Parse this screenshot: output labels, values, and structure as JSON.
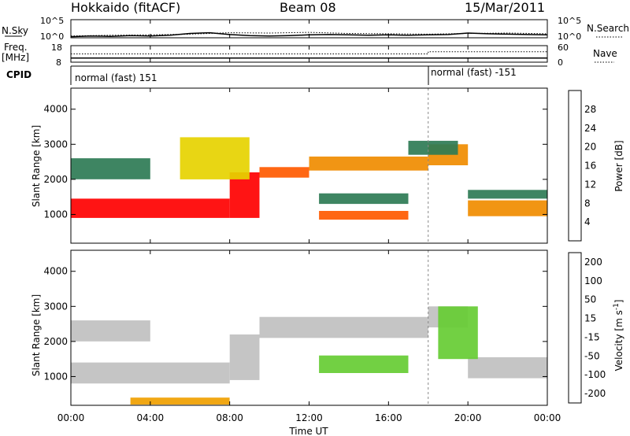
{
  "header": {
    "site": "Hokkaido (fitACF)",
    "beam": "Beam 08",
    "date": "15/Mar/2011"
  },
  "labels": {
    "nsky": "N.Sky",
    "nsearch": "N.Search",
    "freq": "Freq.",
    "freq_unit": "[MHz]",
    "nave": "Nave",
    "cpid": "CPID"
  },
  "colors": {
    "gray": "#c0c0c0",
    "axis": "#000000"
  },
  "chart_data": [
    {
      "type": "line",
      "panel": "noise",
      "ylabel_left": "N.Sky",
      "ylabel_right": "N.Search",
      "left_ticks": [
        "10^5",
        "10^0"
      ],
      "right_ticks": [
        "10^5",
        "10^0"
      ],
      "ylim_log10": [
        0,
        5
      ],
      "series": [
        {
          "name": "N.Sky",
          "style": "solid",
          "x_hours": [
            0,
            1,
            2,
            3,
            4,
            5,
            6,
            7,
            8,
            9,
            10,
            11,
            12,
            13,
            14,
            15,
            16,
            17,
            18,
            19,
            20,
            21,
            22,
            23,
            24
          ],
          "log10": [
            0.3,
            0.5,
            0.4,
            0.6,
            0.5,
            0.7,
            1.2,
            1.4,
            0.9,
            0.6,
            0.5,
            0.6,
            0.8,
            0.9,
            0.8,
            0.7,
            0.8,
            0.7,
            0.8,
            0.9,
            1.3,
            1.1,
            1.0,
            0.9,
            0.8
          ]
        },
        {
          "name": "N.Search",
          "style": "dotted",
          "x_hours": [
            0,
            2,
            4,
            6,
            8,
            10,
            12,
            14,
            16,
            18,
            20,
            22,
            24
          ],
          "log10": [
            0.5,
            0.7,
            0.8,
            1.0,
            1.4,
            1.3,
            1.5,
            1.2,
            1.1,
            1.0,
            1.2,
            1.3,
            1.1
          ]
        }
      ]
    },
    {
      "type": "line",
      "panel": "freq",
      "ylabel_left": "Freq. [MHz]",
      "ylabel_right": "Nave",
      "left_ticks": [
        18,
        8
      ],
      "right_ticks": [
        60,
        0
      ],
      "series": [
        {
          "name": "Freq.",
          "style": "solid",
          "x_hours": [
            0,
            24
          ],
          "mhz": [
            10.5,
            10.5
          ]
        },
        {
          "name": "Nave",
          "style": "dotted",
          "x_hours": [
            0,
            18,
            18,
            24
          ],
          "nave": [
            30,
            30,
            38,
            38
          ]
        }
      ]
    },
    {
      "type": "step",
      "panel": "cpid",
      "ylabel": "CPID",
      "segments": [
        {
          "start_hour": 0,
          "end_hour": 18,
          "label": "normal (fast) 151"
        },
        {
          "start_hour": 18,
          "end_hour": 24,
          "label": "normal (fast) -151"
        }
      ]
    },
    {
      "type": "heatmap",
      "panel": "power",
      "ylabel": "Slant Range [km]",
      "colorbar_label": "Power [dB]",
      "ylim": [
        180,
        4600
      ],
      "y_ticks": [
        1000,
        2000,
        3000,
        4000
      ],
      "colorbar_ticks": [
        4,
        8,
        12,
        16,
        20,
        24,
        28
      ],
      "color_levels": [
        "#0000ff",
        "#1e4fb0",
        "#2e7b55",
        "#47a84a",
        "#e6d200",
        "#f08c00",
        "#ff5a00",
        "#ff0000"
      ],
      "bands": [
        {
          "t": [
            0.0,
            8.0
          ],
          "r": [
            900,
            1450
          ],
          "level": 7
        },
        {
          "t": [
            8.0,
            9.5
          ],
          "r": [
            900,
            2200
          ],
          "level": 7
        },
        {
          "t": [
            9.5,
            12.0
          ],
          "r": [
            2050,
            2350
          ],
          "level": 6
        },
        {
          "t": [
            12.0,
            18.0
          ],
          "r": [
            2250,
            2650
          ],
          "level": 5
        },
        {
          "t": [
            18.0,
            20.0
          ],
          "r": [
            2400,
            3000
          ],
          "level": 5
        },
        {
          "t": [
            20.0,
            24.0
          ],
          "r": [
            950,
            1400
          ],
          "level": 5
        },
        {
          "t": [
            0.0,
            4.0
          ],
          "r": [
            2000,
            2600
          ],
          "level": 2
        },
        {
          "t": [
            5.5,
            9.0
          ],
          "r": [
            2000,
            3200
          ],
          "level": 4
        },
        {
          "t": [
            12.5,
            17.0
          ],
          "r": [
            1300,
            1600
          ],
          "level": 2
        },
        {
          "t": [
            12.5,
            17.0
          ],
          "r": [
            850,
            1100
          ],
          "level": 6
        },
        {
          "t": [
            20.0,
            24.0
          ],
          "r": [
            1450,
            1700
          ],
          "level": 2
        },
        {
          "t": [
            17.0,
            19.5
          ],
          "r": [
            2700,
            3100
          ],
          "level": 2
        }
      ]
    },
    {
      "type": "heatmap",
      "panel": "velocity",
      "ylabel": "Slant Range [km]",
      "colorbar_label": "Velocity [m s^-1]",
      "ylim": [
        180,
        4600
      ],
      "y_ticks": [
        1000,
        2000,
        3000,
        4000
      ],
      "colorbar_ticks": [
        200,
        100,
        50,
        15,
        -15,
        -50,
        -100,
        -200
      ],
      "color_levels": [
        "#1e3cc8",
        "#2a64a0",
        "#2e7b55",
        "#66cc33",
        "#c0c0c0",
        "#f0a000",
        "#ff5a00",
        "#ff0000"
      ],
      "bands": [
        {
          "t": [
            0.0,
            8.0
          ],
          "r": [
            800,
            1400
          ],
          "level": 4
        },
        {
          "t": [
            8.0,
            9.5
          ],
          "r": [
            900,
            2200
          ],
          "level": 4
        },
        {
          "t": [
            9.5,
            18.0
          ],
          "r": [
            2100,
            2700
          ],
          "level": 4
        },
        {
          "t": [
            18.0,
            20.0
          ],
          "r": [
            2400,
            3000
          ],
          "level": 4
        },
        {
          "t": [
            20.0,
            24.0
          ],
          "r": [
            950,
            1550
          ],
          "level": 4
        },
        {
          "t": [
            0.0,
            4.0
          ],
          "r": [
            2000,
            2600
          ],
          "level": 4
        },
        {
          "t": [
            12.5,
            17.0
          ],
          "r": [
            1100,
            1600
          ],
          "level": 3
        },
        {
          "t": [
            18.5,
            20.5
          ],
          "r": [
            1500,
            3000
          ],
          "level": 3
        },
        {
          "t": [
            3.0,
            8.0
          ],
          "r": [
            200,
            400
          ],
          "level": 5
        }
      ]
    }
  ],
  "x_axis": {
    "label": "Time UT",
    "ticks": [
      "00:00",
      "04:00",
      "08:00",
      "12:00",
      "16:00",
      "20:00",
      "00:00"
    ],
    "tick_hours": [
      0,
      4,
      8,
      12,
      16,
      20,
      24
    ]
  }
}
